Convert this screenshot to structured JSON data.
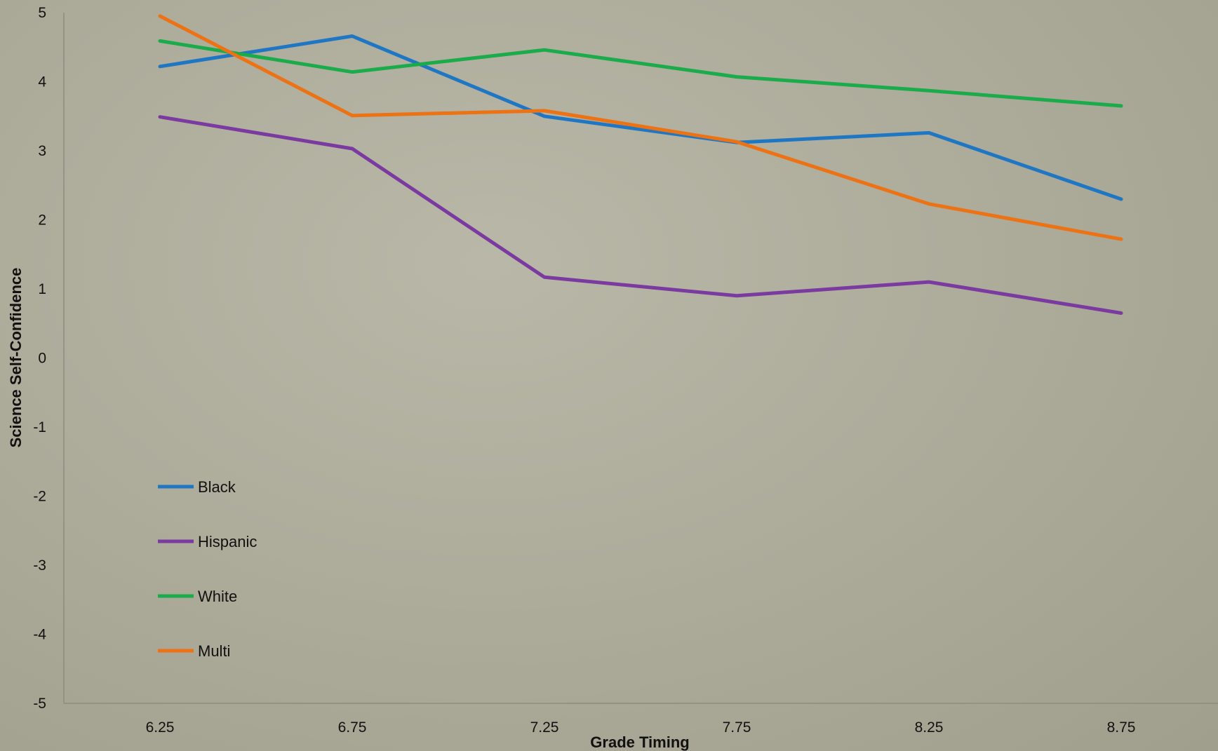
{
  "chart_data": {
    "type": "line",
    "title": "",
    "xlabel": "Grade Timing",
    "ylabel": "Science Self-Confidence",
    "x": [
      "6.25",
      "6.75",
      "7.25",
      "7.75",
      "8.25",
      "8.75"
    ],
    "ylim": [
      -5,
      5
    ],
    "yticks": [
      "5",
      "4",
      "3",
      "2",
      "1",
      "0",
      "-1",
      "-2",
      "-3",
      "-4",
      "-5"
    ],
    "grid": false,
    "legend_position": "bottom-left",
    "series": [
      {
        "name": "Black",
        "color": "#1f77c4",
        "values": [
          4.22,
          4.66,
          3.5,
          3.12,
          3.26,
          2.3
        ]
      },
      {
        "name": "Hispanic",
        "color": "#7a3aa0",
        "values": [
          3.49,
          3.03,
          1.17,
          0.9,
          1.1,
          0.65
        ]
      },
      {
        "name": "White",
        "color": "#1aab4a",
        "values": [
          4.59,
          4.14,
          4.46,
          4.07,
          3.87,
          3.65
        ]
      },
      {
        "name": "Multi",
        "color": "#ec7214",
        "values": [
          4.95,
          3.51,
          3.58,
          3.13,
          2.23,
          1.72
        ]
      }
    ]
  }
}
